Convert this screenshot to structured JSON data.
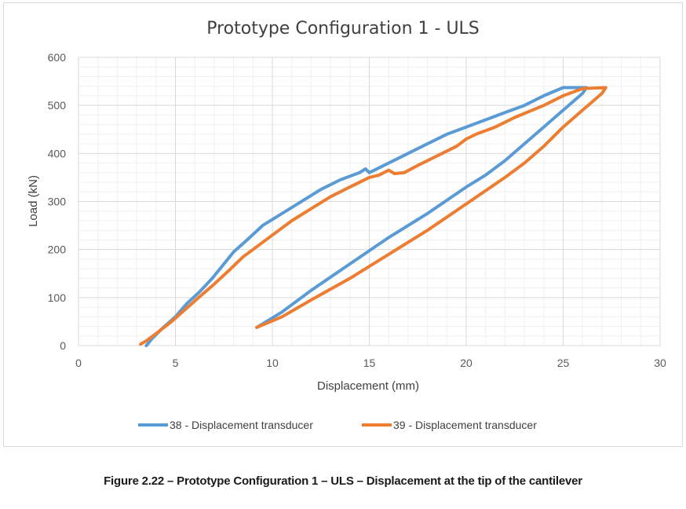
{
  "caption": "Figure 2.22 – Prototype Configuration 1 – ULS – Displacement at the tip of the cantilever",
  "chart_data": {
    "type": "line",
    "title": "Prototype Configuration 1 - ULS",
    "xlabel": "Displacement  (mm)",
    "ylabel": "Load (kN)",
    "xlim": [
      0,
      30
    ],
    "ylim": [
      0,
      600
    ],
    "x_ticks": [
      "0",
      "5",
      "10",
      "15",
      "20",
      "25",
      "30"
    ],
    "y_ticks": [
      "0",
      "100",
      "200",
      "300",
      "400",
      "500",
      "600"
    ],
    "grid": true,
    "legend_position": "bottom",
    "series": [
      {
        "name": "38 - Displacement transducer",
        "color": "#5B9BD5",
        "points": [
          [
            3.5,
            0
          ],
          [
            3.8,
            15
          ],
          [
            4.3,
            35
          ],
          [
            5.0,
            60
          ],
          [
            5.6,
            88
          ],
          [
            6.2,
            110
          ],
          [
            6.9,
            140
          ],
          [
            7.5,
            170
          ],
          [
            8.0,
            195
          ],
          [
            8.7,
            220
          ],
          [
            9.5,
            250
          ],
          [
            10.5,
            275
          ],
          [
            11.5,
            300
          ],
          [
            12.5,
            325
          ],
          [
            13.5,
            345
          ],
          [
            14.5,
            360
          ],
          [
            14.8,
            368
          ],
          [
            15.0,
            360
          ],
          [
            16.0,
            380
          ],
          [
            17.0,
            400
          ],
          [
            18.0,
            420
          ],
          [
            19.0,
            440
          ],
          [
            20.0,
            455
          ],
          [
            21.0,
            470
          ],
          [
            22.0,
            485
          ],
          [
            23.0,
            500
          ],
          [
            24.0,
            520
          ],
          [
            25.0,
            537
          ],
          [
            26.2,
            537
          ],
          [
            26.0,
            525
          ],
          [
            25.0,
            490
          ],
          [
            24.0,
            455
          ],
          [
            23.0,
            420
          ],
          [
            22.0,
            385
          ],
          [
            21.0,
            355
          ],
          [
            20.0,
            330
          ],
          [
            18.0,
            275
          ],
          [
            16.0,
            225
          ],
          [
            14.0,
            170
          ],
          [
            12.0,
            115
          ],
          [
            10.5,
            70
          ],
          [
            9.2,
            38
          ]
        ]
      },
      {
        "name": "39 - Displacement transducer",
        "color": "#ED7D31",
        "points": [
          [
            3.2,
            3
          ],
          [
            3.5,
            10
          ],
          [
            4.0,
            25
          ],
          [
            4.8,
            50
          ],
          [
            5.5,
            75
          ],
          [
            6.2,
            100
          ],
          [
            7.0,
            128
          ],
          [
            7.8,
            158
          ],
          [
            8.5,
            185
          ],
          [
            9.0,
            200
          ],
          [
            10.0,
            230
          ],
          [
            11.0,
            260
          ],
          [
            12.0,
            285
          ],
          [
            13.0,
            310
          ],
          [
            14.0,
            330
          ],
          [
            15.0,
            350
          ],
          [
            15.5,
            355
          ],
          [
            16.0,
            365
          ],
          [
            16.3,
            358
          ],
          [
            16.8,
            360
          ],
          [
            17.5,
            375
          ],
          [
            18.5,
            395
          ],
          [
            19.5,
            415
          ],
          [
            20.0,
            430
          ],
          [
            20.5,
            440
          ],
          [
            21.5,
            455
          ],
          [
            22.5,
            475
          ],
          [
            24.0,
            500
          ],
          [
            25.0,
            520
          ],
          [
            26.0,
            535
          ],
          [
            27.2,
            537
          ],
          [
            27.0,
            525
          ],
          [
            26.0,
            490
          ],
          [
            25.0,
            455
          ],
          [
            24.0,
            415
          ],
          [
            23.0,
            380
          ],
          [
            22.0,
            350
          ],
          [
            20.0,
            295
          ],
          [
            18.0,
            240
          ],
          [
            16.0,
            190
          ],
          [
            14.0,
            140
          ],
          [
            12.0,
            95
          ],
          [
            10.5,
            60
          ],
          [
            9.2,
            38
          ]
        ]
      }
    ]
  }
}
